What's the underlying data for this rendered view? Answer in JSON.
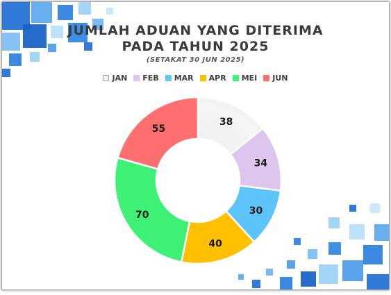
{
  "chart_data": {
    "type": "pie",
    "variant": "donut",
    "title": "JUMLAH ADUAN YANG DITERIMA PADA TAHUN 2025",
    "title_lines": [
      "JUMLAH ADUAN YANG DITERIMA",
      "PADA TAHUN 2025"
    ],
    "subtitle": "(SETAKAT 30 JUN 2025)",
    "legend_placement": "top",
    "categories": [
      "JAN",
      "FEB",
      "MAR",
      "APR",
      "MEI",
      "JUN"
    ],
    "values": [
      38,
      34,
      30,
      40,
      70,
      55
    ],
    "colors": [
      "#f2f2f2",
      "#dcc6ee",
      "#5cc4f8",
      "#ffc000",
      "#3ef075",
      "#ff6f6f"
    ]
  }
}
